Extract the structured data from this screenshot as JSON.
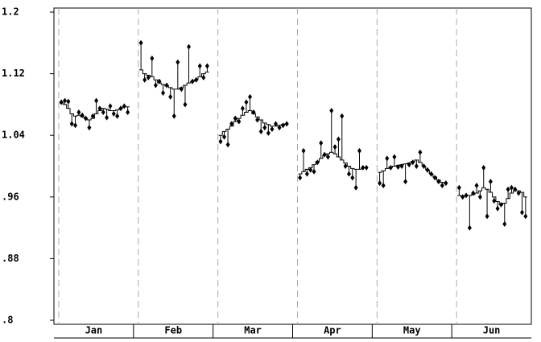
{
  "chart_data": {
    "type": "smoothed-scatter",
    "color": "#000000",
    "grid": true,
    "ylim": [
      0.8,
      1.2
    ],
    "yticks": [
      {
        "value": 0.8,
        "label": ".8"
      },
      {
        "value": 0.88,
        "label": ".88"
      },
      {
        "value": 0.96,
        "label": ".96"
      },
      1.04,
      1.12,
      1.2
    ],
    "groups": [
      {
        "name": "Jan",
        "values": [
          1.083,
          1.085,
          1.084,
          1.055,
          1.053,
          1.07,
          1.066,
          1.062,
          1.05,
          1.065,
          1.085,
          1.075,
          1.07,
          1.063,
          1.078,
          1.068,
          1.065,
          1.075,
          1.078,
          1.07
        ],
        "smooth": [
          1.082,
          1.08,
          1.075,
          1.068,
          1.065,
          1.066,
          1.064,
          1.062,
          1.06,
          1.062,
          1.068,
          1.072,
          1.075,
          1.074,
          1.072,
          1.072,
          1.073,
          1.075,
          1.077,
          1.077
        ]
      },
      {
        "name": "Feb",
        "values": [
          1.16,
          1.112,
          1.115,
          1.14,
          1.105,
          1.11,
          1.095,
          1.105,
          1.09,
          1.065,
          1.135,
          1.1,
          1.08,
          1.155,
          1.11,
          1.112,
          1.13,
          1.115,
          1.13
        ],
        "smooth": [
          1.125,
          1.12,
          1.118,
          1.116,
          1.112,
          1.108,
          1.106,
          1.104,
          1.102,
          1.1,
          1.1,
          1.102,
          1.105,
          1.108,
          1.11,
          1.112,
          1.116,
          1.12,
          1.122
        ]
      },
      {
        "name": "Mar",
        "values": [
          1.032,
          1.038,
          1.028,
          1.055,
          1.062,
          1.058,
          1.075,
          1.083,
          1.09,
          1.07,
          1.06,
          1.045,
          1.05,
          1.043,
          1.048,
          1.055,
          1.05,
          1.053,
          1.055
        ],
        "smooth": [
          1.04,
          1.045,
          1.048,
          1.052,
          1.058,
          1.062,
          1.066,
          1.07,
          1.072,
          1.068,
          1.064,
          1.06,
          1.056,
          1.054,
          1.052,
          1.052,
          1.053,
          1.054,
          1.055
        ]
      },
      {
        "name": "Apr",
        "values": [
          0.985,
          1.02,
          0.99,
          0.995,
          0.993,
          1.005,
          1.03,
          1.015,
          1.012,
          1.072,
          1.025,
          1.035,
          1.065,
          1.0,
          0.99,
          0.985,
          0.972,
          1.02,
          0.998,
          0.998
        ],
        "smooth": [
          0.99,
          0.993,
          0.996,
          0.998,
          1.002,
          1.006,
          1.01,
          1.014,
          1.016,
          1.018,
          1.016,
          1.012,
          1.008,
          1.004,
          1.0,
          0.997,
          0.996,
          0.996,
          0.998,
          0.998
        ]
      },
      {
        "name": "May",
        "values": [
          0.978,
          0.975,
          1.01,
          0.998,
          1.012,
          0.999,
          1.0,
          0.98,
          1.002,
          1.005,
          1.0,
          1.018,
          1.0,
          0.995,
          0.99,
          0.985,
          0.98,
          0.975,
          0.978
        ],
        "smooth": [
          0.992,
          0.994,
          0.997,
          0.999,
          1.0,
          1.001,
          1.002,
          1.003,
          1.004,
          1.006,
          1.008,
          1.005,
          1.0,
          0.995,
          0.99,
          0.986,
          0.982,
          0.979,
          0.978
        ]
      },
      {
        "name": "Jun",
        "values": [
          0.972,
          0.96,
          0.962,
          0.92,
          0.965,
          0.975,
          0.96,
          0.998,
          0.935,
          0.98,
          0.955,
          0.945,
          0.95,
          0.925,
          0.97,
          0.972,
          0.97,
          0.965,
          0.94,
          0.935
        ],
        "smooth": [
          0.962,
          0.961,
          0.962,
          0.962,
          0.963,
          0.965,
          0.968,
          0.972,
          0.97,
          0.966,
          0.96,
          0.954,
          0.95,
          0.952,
          0.958,
          0.965,
          0.968,
          0.968,
          0.966,
          0.96
        ]
      }
    ]
  }
}
